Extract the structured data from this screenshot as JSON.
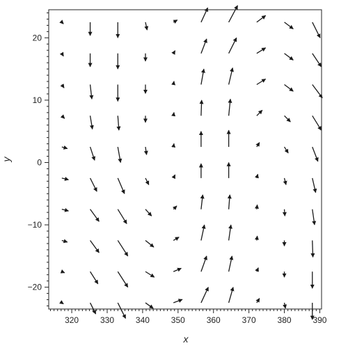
{
  "chart_data": {
    "type": "quiver",
    "title": "",
    "xlabel": "x",
    "ylabel": "y",
    "xlim": [
      313.5,
      390.5
    ],
    "ylim": [
      -23.5,
      24.5
    ],
    "xticks": [
      320,
      330,
      340,
      350,
      360,
      370,
      380,
      390
    ],
    "xtick_labels": [
      "320",
      "330",
      "340",
      "350",
      "360",
      "370",
      "380",
      "390"
    ],
    "yticks": [
      -20,
      -10,
      0,
      10,
      20
    ],
    "ytick_labels": [
      "−20",
      "−10",
      "0",
      "10",
      "20"
    ],
    "x_minor_step": 1,
    "y_minor_step": 1,
    "grid": false,
    "arrow_color": "#1a1a1a",
    "axis_color": "#222222",
    "x": [
      317.2,
      325.2,
      333.0,
      340.8,
      348.7,
      356.5,
      364.3,
      372.2,
      380.0,
      387.9
    ],
    "y": [
      22.5,
      17.5,
      12.5,
      7.5,
      2.5,
      -2.5,
      -7.5,
      -12.5,
      -17.5,
      -22.5
    ],
    "u": [
      [
        0.3,
        0,
        0,
        0.3,
        0.7,
        1.2,
        1.6,
        1.6,
        1.6,
        1.4
      ],
      [
        0.3,
        0,
        0,
        0,
        0.3,
        1.0,
        1.4,
        1.6,
        1.6,
        1.6
      ],
      [
        0.4,
        0.3,
        0,
        0,
        0.1,
        0.5,
        0.7,
        1.6,
        1.6,
        1.8
      ],
      [
        0.5,
        0.4,
        0.2,
        0,
        0.1,
        0.1,
        0.3,
        1.0,
        1.1,
        1.6
      ],
      [
        1.0,
        0.8,
        0.5,
        0.2,
        0.1,
        0,
        0,
        0.5,
        0.7,
        1.0
      ],
      [
        1.2,
        1.2,
        1.2,
        0.6,
        0.3,
        0,
        0,
        0.2,
        0.3,
        0.6
      ],
      [
        1.2,
        1.6,
        1.6,
        1.1,
        0.6,
        0.3,
        0.2,
        0.1,
        0.1,
        0.4
      ],
      [
        1.0,
        1.6,
        1.8,
        1.5,
        1.0,
        0.6,
        0.4,
        0.1,
        0,
        0.1
      ],
      [
        0.5,
        1.4,
        1.8,
        1.6,
        1.4,
        1.0,
        0.6,
        0.3,
        0,
        0
      ],
      [
        0.3,
        1.0,
        1.4,
        1.4,
        1.6,
        1.3,
        0.8,
        0.5,
        0.2,
        0
      ]
    ],
    "v": [
      [
        -0.3,
        -2.4,
        -2.8,
        -1.4,
        0.4,
        2.6,
        3.0,
        1.2,
        -1.2,
        -2.8
      ],
      [
        -0.5,
        -2.4,
        -2.8,
        -1.4,
        0.5,
        2.6,
        2.8,
        1.0,
        -1.2,
        -2.4
      ],
      [
        -0.6,
        -2.6,
        -3.0,
        -1.6,
        0.6,
        2.8,
        3.0,
        1.0,
        -1.2,
        -2.4
      ],
      [
        -0.5,
        -2.4,
        -2.6,
        -1.2,
        0.6,
        2.8,
        3.0,
        1.0,
        -1.1,
        -2.6
      ],
      [
        -0.3,
        -2.4,
        -2.8,
        -1.4,
        0.6,
        2.8,
        3.0,
        0.8,
        -1.1,
        -2.6
      ],
      [
        -0.3,
        -2.4,
        -2.8,
        -1.2,
        0.6,
        2.6,
        2.8,
        0.7,
        -1.2,
        -2.6
      ],
      [
        -0.3,
        -2.2,
        -2.6,
        -1.2,
        0.6,
        2.6,
        2.6,
        0.8,
        -1.2,
        -2.8
      ],
      [
        -0.3,
        -2.2,
        -2.8,
        -1.2,
        0.6,
        2.8,
        2.8,
        0.8,
        -1.0,
        -3.0
      ],
      [
        -0.2,
        -2.2,
        -2.8,
        -1.0,
        0.6,
        2.8,
        2.8,
        0.7,
        -1.0,
        -3.0
      ],
      [
        -0.2,
        -2.0,
        -2.8,
        -1.0,
        0.6,
        2.8,
        2.8,
        0.8,
        -1.0,
        -3.0
      ]
    ]
  }
}
